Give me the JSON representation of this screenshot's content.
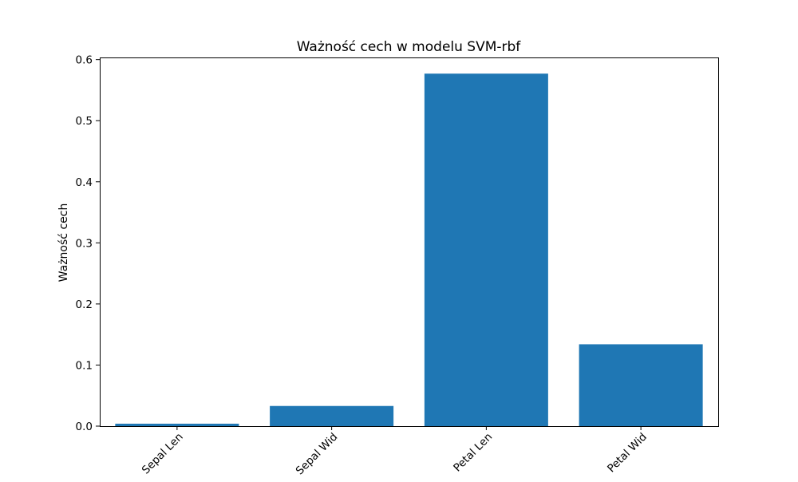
{
  "chart_data": {
    "type": "bar",
    "title": "Ważność cech w modelu SVM-rbf",
    "xlabel": "",
    "ylabel": "Ważność cech",
    "categories": [
      "Sepal Len",
      "Sepal Wid",
      "Petal Len",
      "Petal Wid"
    ],
    "values": [
      0.004,
      0.033,
      0.577,
      0.134
    ],
    "ylim": [
      0,
      0.6
    ],
    "yticks": [
      0.0,
      0.1,
      0.2,
      0.3,
      0.4,
      0.5,
      0.6
    ],
    "ytick_labels": [
      "0.0",
      "0.1",
      "0.2",
      "0.3",
      "0.4",
      "0.5",
      "0.6"
    ],
    "xtick_rotation_deg": 45,
    "bar_color": "#1f77b4",
    "grid": false,
    "legend": "none"
  }
}
